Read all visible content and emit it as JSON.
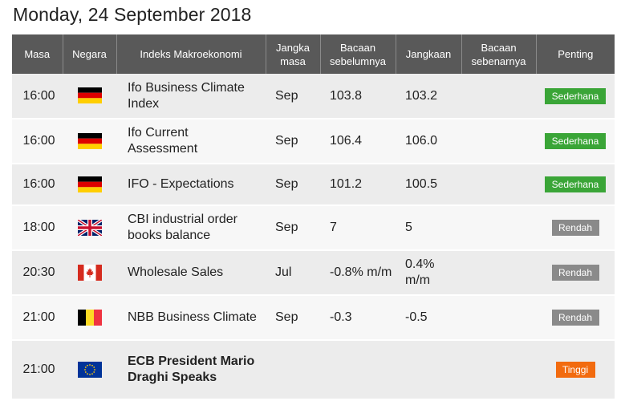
{
  "page_title": "Monday, 24 September 2018",
  "columns": {
    "time": "Masa",
    "country": "Negara",
    "indicator": "Indeks Makroekonomi",
    "period": "Jangka masa",
    "previous": "Bacaan sebelumnya",
    "forecast": "Jangkaan",
    "actual": "Bacaan sebenarnya",
    "importance": "Penting"
  },
  "importance_colors": {
    "Sederhana": "#3aa537",
    "Rendah": "#8a8a8a",
    "Tinggi": "#f26b0f"
  },
  "rows": [
    {
      "time": "16:00",
      "flag": "germany-flag-icon",
      "indicator": "Ifo Business Climate Index",
      "period": "Sep",
      "previous": "103.8",
      "forecast": "103.2",
      "actual": "",
      "importance": "Sederhana"
    },
    {
      "time": "16:00",
      "flag": "germany-flag-icon",
      "indicator": "Ifo Current Assessment",
      "period": "Sep",
      "previous": "106.4",
      "forecast": "106.0",
      "actual": "",
      "importance": "Sederhana"
    },
    {
      "time": "16:00",
      "flag": "germany-flag-icon",
      "indicator": "IFO - Expectations",
      "period": "Sep",
      "previous": "101.2",
      "forecast": "100.5",
      "actual": "",
      "importance": "Sederhana"
    },
    {
      "time": "18:00",
      "flag": "uk-flag-icon",
      "indicator": "CBI industrial order books balance",
      "period": "Sep",
      "previous": "7",
      "forecast": "5",
      "actual": "",
      "importance": "Rendah"
    },
    {
      "time": "20:30",
      "flag": "canada-flag-icon",
      "indicator": "Wholesale Sales",
      "period": "Jul",
      "previous": "-0.8% m/m",
      "forecast": "0.4% m/m",
      "actual": "",
      "importance": "Rendah"
    },
    {
      "time": "21:00",
      "flag": "belgium-flag-icon",
      "indicator": "NBB Business Climate",
      "period": "Sep",
      "previous": "-0.3",
      "forecast": "-0.5",
      "actual": "",
      "importance": "Rendah"
    },
    {
      "time": "21:00",
      "flag": "eu-flag-icon",
      "indicator": "ECB President Mario Draghi Speaks",
      "period": "",
      "previous": "",
      "forecast": "",
      "actual": "",
      "importance": "Tinggi"
    }
  ]
}
